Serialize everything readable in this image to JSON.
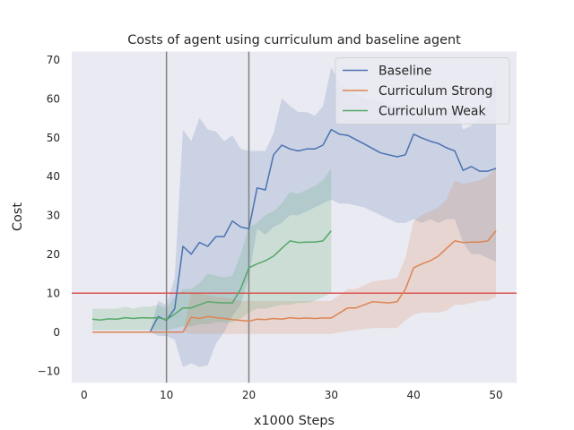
{
  "chart_data": {
    "type": "line",
    "title": "Costs of agent using curriculum and baseline agent",
    "xlabel": "x1000 Steps",
    "ylabel": "Cost",
    "xlim": [
      -1.5,
      52.5
    ],
    "ylim": [
      -13,
      72
    ],
    "xticks": [
      0,
      10,
      20,
      30,
      40,
      50
    ],
    "yticks": [
      -10,
      0,
      10,
      20,
      30,
      40,
      50,
      60,
      70
    ],
    "grid": false,
    "legend_position": "top-right",
    "vlines": [
      10,
      20
    ],
    "hline": 10,
    "colors": {
      "background": "#eaeaf2",
      "vline": "#808080",
      "hline": "#d9534f"
    },
    "series": [
      {
        "name": "Baseline",
        "color": "#4c72b0",
        "x": [
          8,
          9,
          10,
          11,
          12,
          13,
          14,
          15,
          16,
          17,
          18,
          19,
          20,
          21,
          22,
          23,
          24,
          25,
          26,
          27,
          28,
          29,
          30,
          31,
          32,
          34,
          36,
          38,
          39,
          40,
          41,
          42,
          43,
          44,
          45,
          46,
          47,
          48,
          49,
          50
        ],
        "y": [
          0,
          4,
          3,
          6,
          22,
          20,
          23,
          22,
          24.5,
          24.5,
          28.5,
          27,
          26.5,
          37,
          36.5,
          45.5,
          48,
          47,
          46.5,
          47,
          47,
          48,
          52,
          50.8,
          50.5,
          48.3,
          46,
          45,
          45.5,
          50.8,
          49.8,
          49,
          48.4,
          47.3,
          46.5,
          41.5,
          42.5,
          41.3,
          41.3,
          42
        ],
        "lower": [
          0,
          -1,
          -1,
          -2,
          -9,
          -8,
          -9,
          -8.5,
          -3,
          0,
          4,
          7,
          14,
          26.5,
          25,
          27,
          28,
          30,
          30,
          31,
          32,
          33,
          34,
          33,
          33,
          32,
          30,
          28,
          28,
          29,
          28,
          29,
          28,
          29,
          29,
          23,
          20,
          20,
          19,
          18
        ],
        "upper": [
          0,
          8,
          7,
          14,
          52,
          49,
          55,
          52,
          51.5,
          49,
          50.5,
          47,
          46.5,
          46.5,
          46.5,
          51,
          60,
          58,
          56.5,
          56.5,
          55.5,
          58,
          68,
          64,
          62,
          60,
          59,
          58,
          58,
          58,
          55,
          55,
          56,
          57,
          58,
          52,
          53,
          55,
          58,
          66
        ]
      },
      {
        "name": "Curriculum Strong",
        "color": "#dd8452",
        "x": [
          1,
          2,
          3,
          4,
          5,
          6,
          7,
          8,
          9,
          10,
          11,
          12,
          13,
          14,
          15,
          16,
          17,
          18,
          19,
          20,
          21,
          22,
          23,
          24,
          25,
          26,
          27,
          28,
          29,
          30,
          32,
          33,
          35,
          37,
          38,
          39,
          40,
          41,
          42,
          43,
          44,
          45,
          46,
          47,
          48,
          49,
          50
        ],
        "y": [
          0,
          0,
          0,
          0,
          0,
          0,
          0,
          0,
          0,
          0,
          0,
          0,
          3.8,
          3.5,
          4,
          3.7,
          3.5,
          3.2,
          3,
          2.8,
          3.3,
          3.2,
          3.5,
          3.3,
          3.7,
          3.5,
          3.6,
          3.5,
          3.6,
          3.6,
          6.2,
          6.2,
          7.8,
          7.5,
          7.8,
          11,
          16.5,
          17.5,
          18.3,
          19.5,
          21.5,
          23.4,
          23,
          23.1,
          23.1,
          23.4,
          26
        ],
        "lower": [
          0,
          0,
          0,
          0,
          0,
          0,
          0,
          0,
          0,
          0,
          0,
          0,
          -0.5,
          -0.5,
          -0.5,
          -0.5,
          -0.5,
          -0.5,
          -0.5,
          -0.5,
          -0.5,
          -0.5,
          -0.5,
          -0.5,
          -0.5,
          -0.5,
          -0.5,
          -0.5,
          -0.5,
          -0.5,
          0.3,
          0.5,
          1,
          1,
          1,
          3,
          4.5,
          5,
          5,
          5,
          5.5,
          7,
          7,
          7.5,
          8,
          8,
          9
        ],
        "upper": [
          0,
          0,
          0,
          0,
          0,
          0,
          0,
          0,
          0,
          0,
          0,
          0,
          10,
          10,
          9.5,
          9,
          9,
          8.5,
          8,
          8,
          8,
          8,
          8,
          8,
          8,
          8,
          8,
          8,
          8,
          8,
          11,
          11,
          13,
          13.5,
          14,
          19,
          28.5,
          30,
          31,
          32,
          34,
          39,
          38,
          38.5,
          39,
          40,
          42
        ]
      },
      {
        "name": "Curriculum Weak",
        "color": "#55a868",
        "x": [
          1,
          2,
          3,
          4,
          5,
          6,
          7,
          8,
          9,
          10,
          11,
          12,
          13,
          14,
          15,
          16,
          17,
          18,
          19,
          20,
          21,
          22,
          23,
          24,
          25,
          26,
          27,
          28,
          29,
          30
        ],
        "y": [
          3.3,
          3.1,
          3.4,
          3.3,
          3.7,
          3.5,
          3.7,
          3.6,
          3.7,
          3.2,
          4.6,
          6.2,
          6.2,
          7,
          7.8,
          7.6,
          7.5,
          7.5,
          11,
          16.5,
          17.5,
          18.3,
          19.5,
          21.5,
          23.4,
          23,
          23.1,
          23.1,
          23.4,
          26
        ],
        "lower": [
          0.5,
          0.5,
          0.5,
          0.5,
          0.5,
          0.5,
          0.5,
          0.5,
          0.5,
          0.5,
          1,
          1.5,
          1.5,
          2,
          2,
          2.5,
          2.5,
          2.5,
          3.5,
          5,
          6,
          6,
          6.5,
          7,
          7,
          7.5,
          7.5,
          8,
          9,
          10
        ],
        "upper": [
          6,
          6,
          6,
          6,
          6.5,
          6,
          6.5,
          6.5,
          7,
          6,
          9,
          11,
          11,
          12.5,
          15,
          14.5,
          14,
          14.5,
          20,
          27,
          28,
          30,
          31,
          33,
          36,
          35.5,
          36.5,
          37.5,
          39,
          42
        ]
      }
    ]
  }
}
